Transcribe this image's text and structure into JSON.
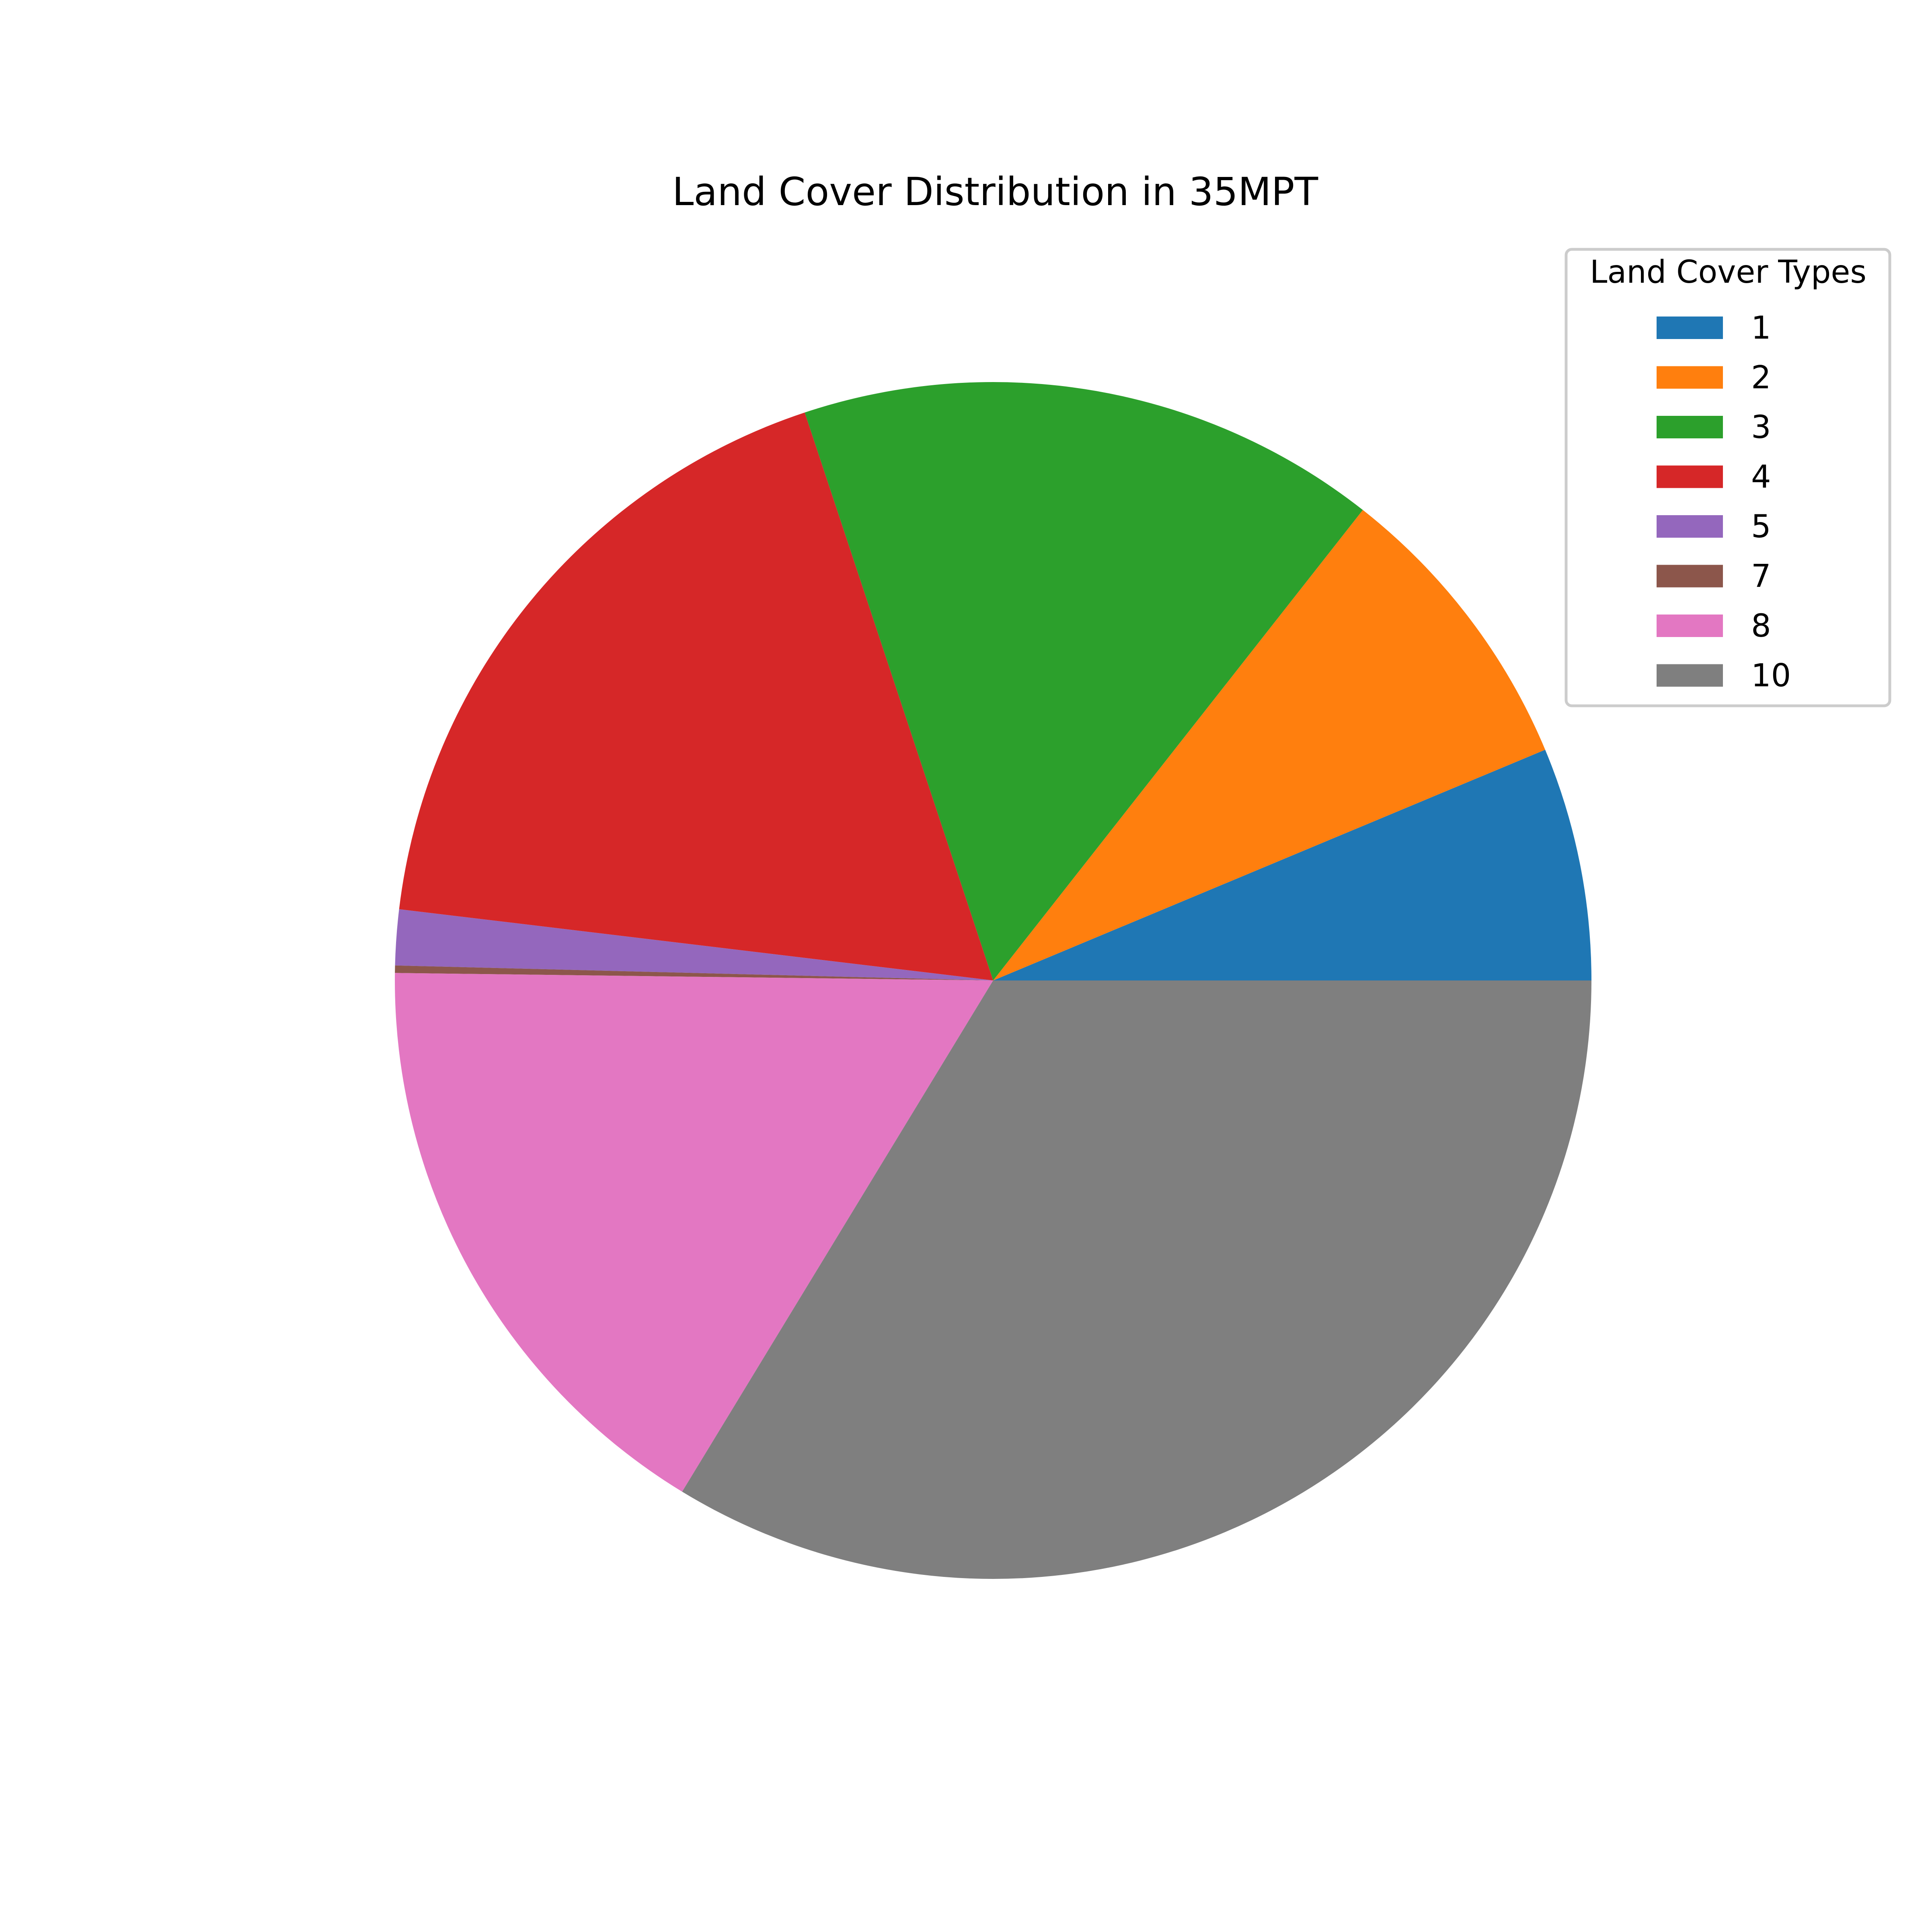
{
  "chart_data": {
    "type": "pie",
    "title": "Land Cover Distribution in 35MPT",
    "legend_title": "Land Cover Types",
    "legend_position": "upper-right",
    "start_angle_deg": 0,
    "direction": "counterclockwise",
    "slices": [
      {
        "label": "1",
        "value": 6.3,
        "color": "#1f77b4"
      },
      {
        "label": "2",
        "value": 8.1,
        "color": "#ff7f0e"
      },
      {
        "label": "3",
        "value": 15.7,
        "color": "#2ca02c"
      },
      {
        "label": "4",
        "value": 18.0,
        "color": "#d62728"
      },
      {
        "label": "5",
        "value": 1.5,
        "color": "#9467bd"
      },
      {
        "label": "7",
        "value": 0.2,
        "color": "#8c564b"
      },
      {
        "label": "8",
        "value": 16.5,
        "color": "#e377c2"
      },
      {
        "label": "10",
        "value": 33.7,
        "color": "#7f7f7f"
      }
    ]
  }
}
